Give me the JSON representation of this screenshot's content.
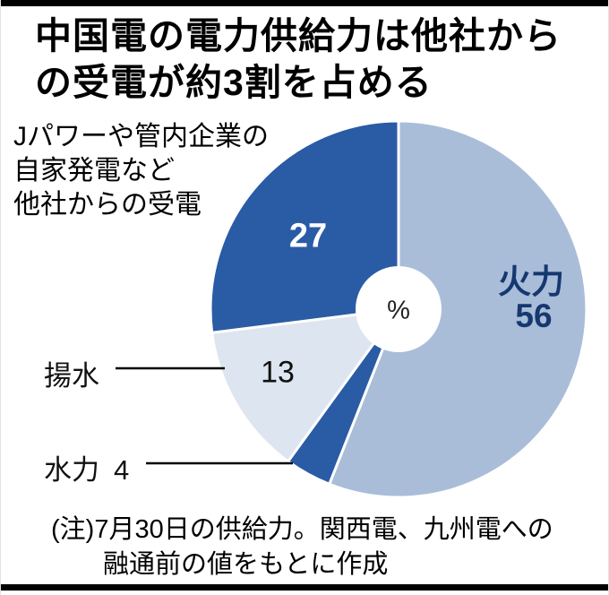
{
  "title": {
    "line1": "中国電の電力供給力は他社から",
    "line2": "の受電が約3割を占める"
  },
  "annotation": {
    "line1": "Jパワーや管内企業の",
    "line2": "自家発電など",
    "line3": "他社からの受電"
  },
  "note": {
    "line1": "(注)7月30日の供給力。関西電、九州電への",
    "line2": "融通前の値をもとに作成"
  },
  "chart_data": {
    "type": "pie",
    "unit": "%",
    "start": "top",
    "direction": "clockwise",
    "title": "中国電の電力供給力は他社からの受電が約3割を占める",
    "segments": [
      {
        "id": "thermal",
        "label": "火力",
        "value": 56,
        "color": "#a9bdd9"
      },
      {
        "id": "hydro",
        "label": "水力",
        "value": 4,
        "color": "#2a5ba5"
      },
      {
        "id": "pumped-storage",
        "label": "揚水",
        "value": 13,
        "color": "#dde5f0"
      },
      {
        "id": "purchased",
        "label": "他社からの受電",
        "value": 27,
        "color": "#2a5ba5"
      }
    ],
    "colors": {
      "thermal": "#a9bdd9",
      "dark_blue": "#2a5ba5",
      "pumped": "#dde5f0",
      "thermal_label_text": "#16386f"
    }
  }
}
